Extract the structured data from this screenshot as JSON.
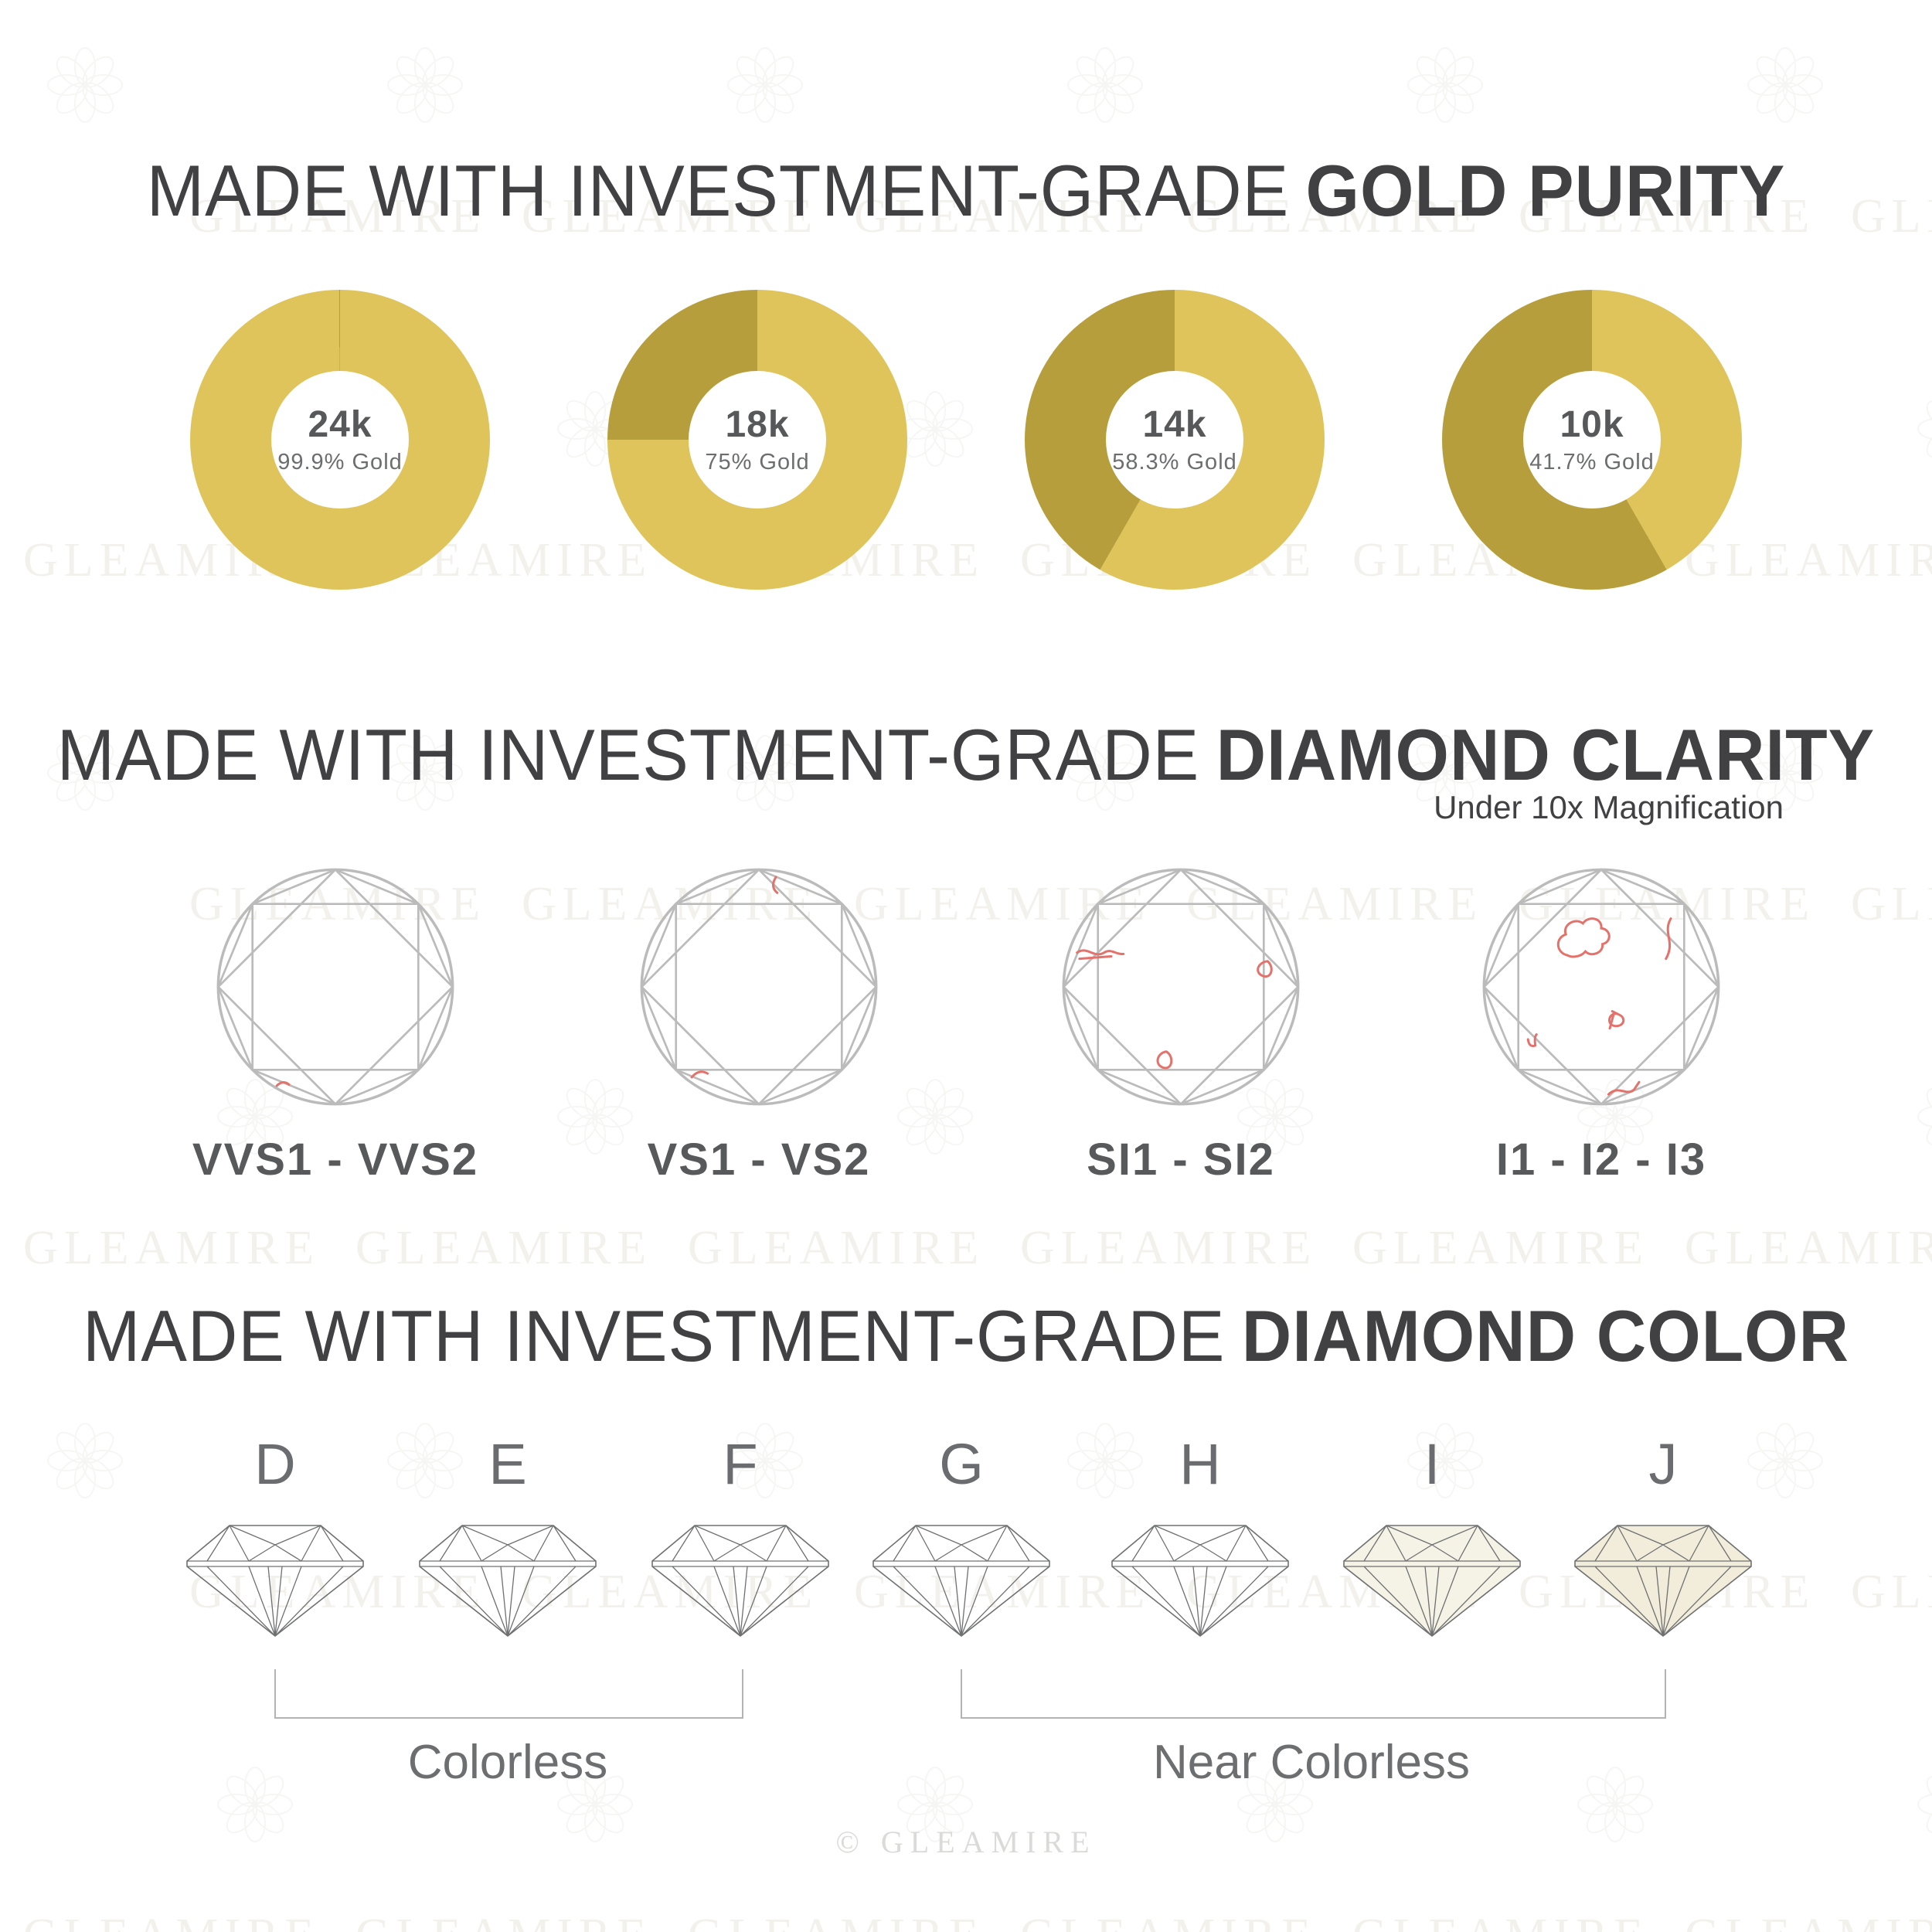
{
  "brand": {
    "watermark_text": "GLEAMIRE",
    "copyright_text": "© GLEAMIRE"
  },
  "colors": {
    "gold_light": "#DFC45C",
    "gold_dark": "#B79E3C",
    "title_dark": "#414042",
    "label_gray": "#58595b",
    "outline_gray": "#bbbbbb",
    "inclusion_red": "#E4716A"
  },
  "gold_purity": {
    "title_regular": "MADE WITH INVESTMENT-GRADE",
    "title_bold": "GOLD PURITY",
    "donuts": [
      {
        "karat": "24k",
        "purity": "99.9% Gold",
        "gold_percent": 99.9
      },
      {
        "karat": "18k",
        "purity": "75% Gold",
        "gold_percent": 75
      },
      {
        "karat": "14k",
        "purity": "58.3% Gold",
        "gold_percent": 58.3
      },
      {
        "karat": "10k",
        "purity": "41.7% Gold",
        "gold_percent": 41.7
      }
    ]
  },
  "diamond_clarity": {
    "title_regular": "MADE WITH INVESTMENT-GRADE",
    "title_bold": "DIAMOND CLARITY",
    "subtitle": "Under 10x Magnification",
    "grades": [
      {
        "label": "VVS1 - VVS2",
        "inclusion_count": 1
      },
      {
        "label": "VS1 - VS2",
        "inclusion_count": 2
      },
      {
        "label": "SI1 - SI2",
        "inclusion_count": 3
      },
      {
        "label": "I1 - I2 - I3",
        "inclusion_count": 5
      }
    ]
  },
  "diamond_color": {
    "title_regular": "MADE WITH INVESTMENT-GRADE",
    "title_bold": "DIAMOND COLOR",
    "grades": [
      {
        "letter": "D",
        "tint": ""
      },
      {
        "letter": "E",
        "tint": ""
      },
      {
        "letter": "F",
        "tint": ""
      },
      {
        "letter": "G",
        "tint": ""
      },
      {
        "letter": "H",
        "tint": ""
      },
      {
        "letter": "I",
        "tint": "#f5f2e6"
      },
      {
        "letter": "J",
        "tint": "#f1edda"
      }
    ],
    "groups": [
      {
        "label": "Colorless",
        "from": "D",
        "to": "F"
      },
      {
        "label": "Near Colorless",
        "from": "G",
        "to": "J"
      }
    ]
  },
  "chart_data": {
    "type": "pie",
    "title": "Gold purity donut charts",
    "series": [
      {
        "name": "24k",
        "gold_percent": 99.9,
        "alloy_percent": 0.1
      },
      {
        "name": "18k",
        "gold_percent": 75,
        "alloy_percent": 25
      },
      {
        "name": "14k",
        "gold_percent": 58.3,
        "alloy_percent": 41.7
      },
      {
        "name": "10k",
        "gold_percent": 41.7,
        "alloy_percent": 58.3
      }
    ]
  }
}
